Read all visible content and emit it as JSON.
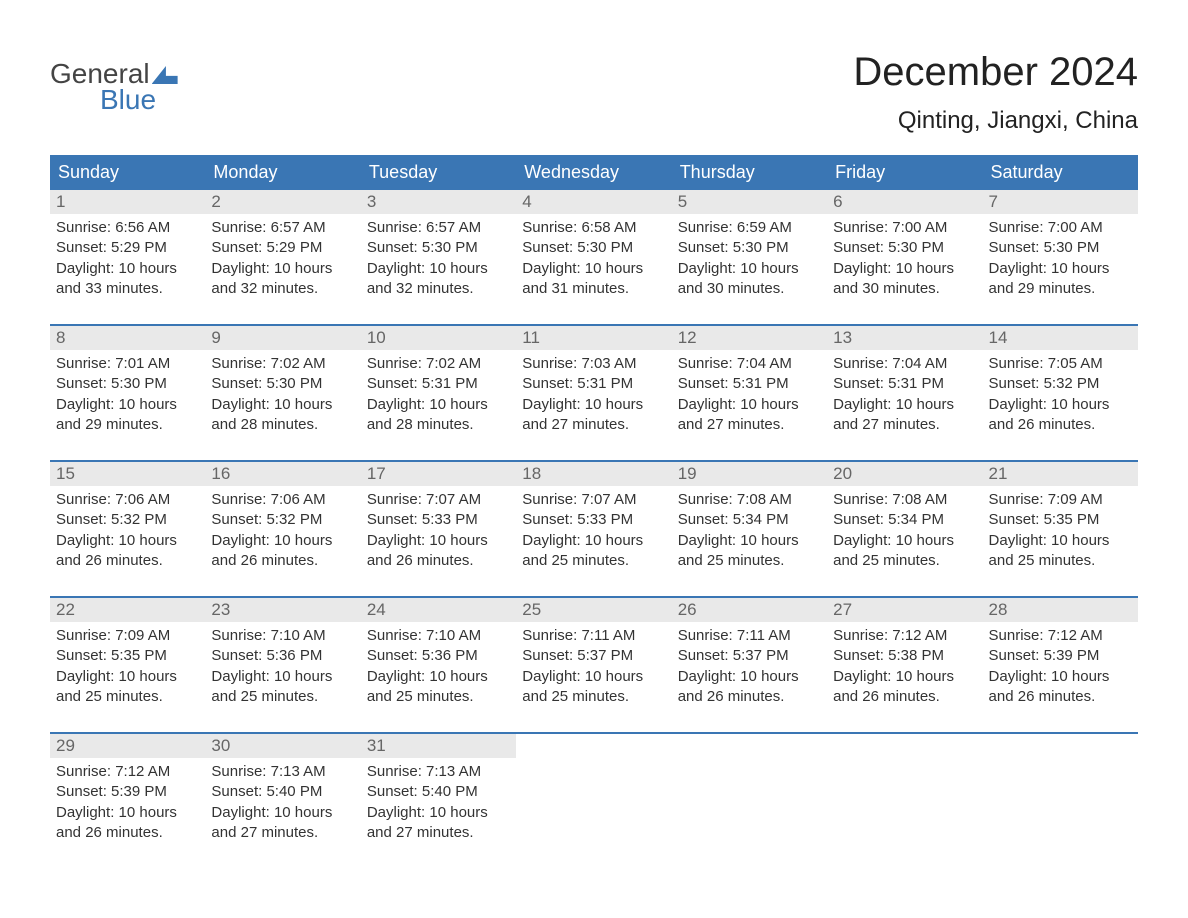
{
  "logo": {
    "line1": "General",
    "line2": "Blue"
  },
  "title": "December 2024",
  "location": "Qinting, Jiangxi, China",
  "colors": {
    "brand": "#3a76b4",
    "header_bg": "#3a76b4",
    "header_text": "#ffffff",
    "daynum_bg": "#e9e9e9",
    "daynum_text": "#666666",
    "body_text": "#333333",
    "background": "#ffffff",
    "week_border": "#3a76b4"
  },
  "typography": {
    "title_fontsize": 40,
    "location_fontsize": 24,
    "dayheader_fontsize": 18,
    "daynum_fontsize": 17,
    "body_fontsize": 15
  },
  "day_names": [
    "Sunday",
    "Monday",
    "Tuesday",
    "Wednesday",
    "Thursday",
    "Friday",
    "Saturday"
  ],
  "weeks": [
    [
      {
        "num": "1",
        "sunrise": "6:56 AM",
        "sunset": "5:29 PM",
        "daylight": "10 hours and 33 minutes."
      },
      {
        "num": "2",
        "sunrise": "6:57 AM",
        "sunset": "5:29 PM",
        "daylight": "10 hours and 32 minutes."
      },
      {
        "num": "3",
        "sunrise": "6:57 AM",
        "sunset": "5:30 PM",
        "daylight": "10 hours and 32 minutes."
      },
      {
        "num": "4",
        "sunrise": "6:58 AM",
        "sunset": "5:30 PM",
        "daylight": "10 hours and 31 minutes."
      },
      {
        "num": "5",
        "sunrise": "6:59 AM",
        "sunset": "5:30 PM",
        "daylight": "10 hours and 30 minutes."
      },
      {
        "num": "6",
        "sunrise": "7:00 AM",
        "sunset": "5:30 PM",
        "daylight": "10 hours and 30 minutes."
      },
      {
        "num": "7",
        "sunrise": "7:00 AM",
        "sunset": "5:30 PM",
        "daylight": "10 hours and 29 minutes."
      }
    ],
    [
      {
        "num": "8",
        "sunrise": "7:01 AM",
        "sunset": "5:30 PM",
        "daylight": "10 hours and 29 minutes."
      },
      {
        "num": "9",
        "sunrise": "7:02 AM",
        "sunset": "5:30 PM",
        "daylight": "10 hours and 28 minutes."
      },
      {
        "num": "10",
        "sunrise": "7:02 AM",
        "sunset": "5:31 PM",
        "daylight": "10 hours and 28 minutes."
      },
      {
        "num": "11",
        "sunrise": "7:03 AM",
        "sunset": "5:31 PM",
        "daylight": "10 hours and 27 minutes."
      },
      {
        "num": "12",
        "sunrise": "7:04 AM",
        "sunset": "5:31 PM",
        "daylight": "10 hours and 27 minutes."
      },
      {
        "num": "13",
        "sunrise": "7:04 AM",
        "sunset": "5:31 PM",
        "daylight": "10 hours and 27 minutes."
      },
      {
        "num": "14",
        "sunrise": "7:05 AM",
        "sunset": "5:32 PM",
        "daylight": "10 hours and 26 minutes."
      }
    ],
    [
      {
        "num": "15",
        "sunrise": "7:06 AM",
        "sunset": "5:32 PM",
        "daylight": "10 hours and 26 minutes."
      },
      {
        "num": "16",
        "sunrise": "7:06 AM",
        "sunset": "5:32 PM",
        "daylight": "10 hours and 26 minutes."
      },
      {
        "num": "17",
        "sunrise": "7:07 AM",
        "sunset": "5:33 PM",
        "daylight": "10 hours and 26 minutes."
      },
      {
        "num": "18",
        "sunrise": "7:07 AM",
        "sunset": "5:33 PM",
        "daylight": "10 hours and 25 minutes."
      },
      {
        "num": "19",
        "sunrise": "7:08 AM",
        "sunset": "5:34 PM",
        "daylight": "10 hours and 25 minutes."
      },
      {
        "num": "20",
        "sunrise": "7:08 AM",
        "sunset": "5:34 PM",
        "daylight": "10 hours and 25 minutes."
      },
      {
        "num": "21",
        "sunrise": "7:09 AM",
        "sunset": "5:35 PM",
        "daylight": "10 hours and 25 minutes."
      }
    ],
    [
      {
        "num": "22",
        "sunrise": "7:09 AM",
        "sunset": "5:35 PM",
        "daylight": "10 hours and 25 minutes."
      },
      {
        "num": "23",
        "sunrise": "7:10 AM",
        "sunset": "5:36 PM",
        "daylight": "10 hours and 25 minutes."
      },
      {
        "num": "24",
        "sunrise": "7:10 AM",
        "sunset": "5:36 PM",
        "daylight": "10 hours and 25 minutes."
      },
      {
        "num": "25",
        "sunrise": "7:11 AM",
        "sunset": "5:37 PM",
        "daylight": "10 hours and 25 minutes."
      },
      {
        "num": "26",
        "sunrise": "7:11 AM",
        "sunset": "5:37 PM",
        "daylight": "10 hours and 26 minutes."
      },
      {
        "num": "27",
        "sunrise": "7:12 AM",
        "sunset": "5:38 PM",
        "daylight": "10 hours and 26 minutes."
      },
      {
        "num": "28",
        "sunrise": "7:12 AM",
        "sunset": "5:39 PM",
        "daylight": "10 hours and 26 minutes."
      }
    ],
    [
      {
        "num": "29",
        "sunrise": "7:12 AM",
        "sunset": "5:39 PM",
        "daylight": "10 hours and 26 minutes."
      },
      {
        "num": "30",
        "sunrise": "7:13 AM",
        "sunset": "5:40 PM",
        "daylight": "10 hours and 27 minutes."
      },
      {
        "num": "31",
        "sunrise": "7:13 AM",
        "sunset": "5:40 PM",
        "daylight": "10 hours and 27 minutes."
      },
      null,
      null,
      null,
      null
    ]
  ],
  "labels": {
    "sunrise_prefix": "Sunrise: ",
    "sunset_prefix": "Sunset: ",
    "daylight_prefix": "Daylight: "
  }
}
